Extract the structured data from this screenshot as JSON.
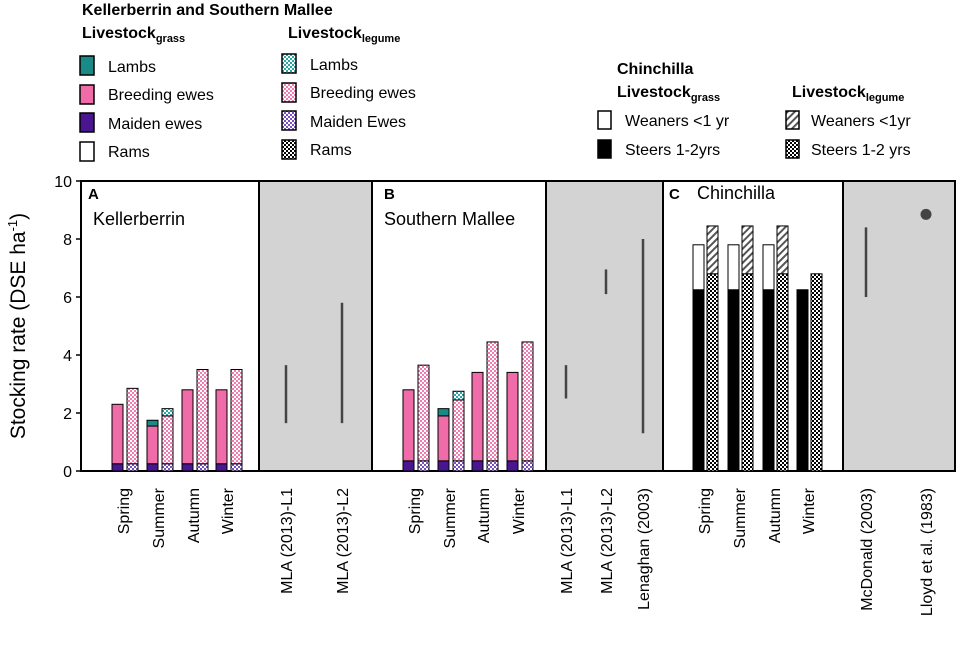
{
  "colors": {
    "lambs": "#1a8a86",
    "lambs_leg": "#3fc2bd",
    "breeding": "#f06ca8",
    "breeding_leg": "#f7a8cc",
    "maiden": "#4a1590",
    "maiden_leg": "#9b72d8",
    "shade": "#d3d3d3",
    "black": "#000000"
  },
  "legend_ks": {
    "title": "Kellerberrin and Southern Mallee",
    "grass_main": "Livestock",
    "grass_sub": "grass",
    "legume_main": "Livestock",
    "legume_sub": "legume",
    "grass_items": [
      "Lambs",
      "Breeding ewes",
      "Maiden ewes",
      "Rams"
    ],
    "legume_items": [
      "Lambs",
      "Breeding ewes",
      "Maiden Ewes",
      "Rams"
    ]
  },
  "legend_ch": {
    "title": "Chinchilla",
    "grass_main": "Livestock",
    "grass_sub": "grass",
    "legume_main": "Livestock",
    "legume_sub": "legume",
    "grass_items": [
      "Weaners <1 yr",
      "Steers 1-2yrs"
    ],
    "legume_items": [
      "Weaners <1yr",
      "Steers 1-2 yrs"
    ]
  },
  "chart_data": {
    "type": "bar",
    "ylabel_main": "Stocking rate (DSE ha",
    "ylabel_sup": "-1",
    "ylabel_close": ")",
    "ylim": [
      0,
      10
    ],
    "yticks": [
      "0",
      "2",
      "4",
      "6",
      "8",
      "10"
    ],
    "seasons": [
      "Spring",
      "Summer",
      "Autumn",
      "Winter"
    ],
    "panels": [
      {
        "letter": "A",
        "name": "Kellerberrin",
        "grass": [
          {
            "lambs": 0,
            "breeding": 2.05,
            "maiden": 0.25,
            "rams": 0
          },
          {
            "lambs": 0.2,
            "breeding": 1.3,
            "maiden": 0.25,
            "rams": 0
          },
          {
            "lambs": 0,
            "breeding": 2.55,
            "maiden": 0.25,
            "rams": 0
          },
          {
            "lambs": 0,
            "breeding": 2.55,
            "maiden": 0.25,
            "rams": 0
          }
        ],
        "legume": [
          {
            "lambs": 0,
            "breeding": 2.6,
            "maiden": 0.25,
            "rams": 0
          },
          {
            "lambs": 0.25,
            "breeding": 1.65,
            "maiden": 0.25,
            "rams": 0
          },
          {
            "lambs": 0,
            "breeding": 3.25,
            "maiden": 0.25,
            "rams": 0
          },
          {
            "lambs": 0,
            "breeding": 3.25,
            "maiden": 0.25,
            "rams": 0
          }
        ],
        "refs": [
          {
            "label": "MLA (2013)-L1",
            "range": [
              1.65,
              3.65
            ]
          },
          {
            "label": "MLA (2013)-L2",
            "range": [
              1.65,
              5.8
            ]
          }
        ]
      },
      {
        "letter": "B",
        "name": "Southern Mallee",
        "grass": [
          {
            "lambs": 0,
            "breeding": 2.45,
            "maiden": 0.35,
            "rams": 0
          },
          {
            "lambs": 0.25,
            "breeding": 1.55,
            "maiden": 0.35,
            "rams": 0
          },
          {
            "lambs": 0,
            "breeding": 3.05,
            "maiden": 0.35,
            "rams": 0
          },
          {
            "lambs": 0,
            "breeding": 3.05,
            "maiden": 0.35,
            "rams": 0
          }
        ],
        "legume": [
          {
            "lambs": 0,
            "breeding": 3.3,
            "maiden": 0.35,
            "rams": 0
          },
          {
            "lambs": 0.3,
            "breeding": 2.1,
            "maiden": 0.35,
            "rams": 0
          },
          {
            "lambs": 0,
            "breeding": 4.1,
            "maiden": 0.35,
            "rams": 0
          },
          {
            "lambs": 0,
            "breeding": 4.1,
            "maiden": 0.35,
            "rams": 0
          }
        ],
        "refs": [
          {
            "label": "MLA (2013)-L1",
            "range": [
              2.5,
              3.65
            ]
          },
          {
            "label": "MLA (2013)-L2",
            "range": [
              6.1,
              6.95
            ]
          },
          {
            "label": "Lenaghan (2003)",
            "range": [
              1.3,
              8.0
            ]
          }
        ]
      },
      {
        "letter": "C",
        "name": "Chinchilla",
        "grass": [
          {
            "steers": 6.25,
            "weaners": 1.55
          },
          {
            "steers": 6.25,
            "weaners": 1.55
          },
          {
            "steers": 6.25,
            "weaners": 1.55
          },
          {
            "steers": 6.25,
            "weaners": 0
          }
        ],
        "legume": [
          {
            "steers": 6.8,
            "weaners": 1.65
          },
          {
            "steers": 6.8,
            "weaners": 1.65
          },
          {
            "steers": 6.8,
            "weaners": 1.65
          },
          {
            "steers": 6.8,
            "weaners": 0
          }
        ],
        "refs": [
          {
            "label": "McDonald (2003)",
            "range": [
              6.0,
              8.4
            ]
          },
          {
            "label": "Lloyd et al. (1983)",
            "point": 8.85
          }
        ]
      }
    ]
  }
}
